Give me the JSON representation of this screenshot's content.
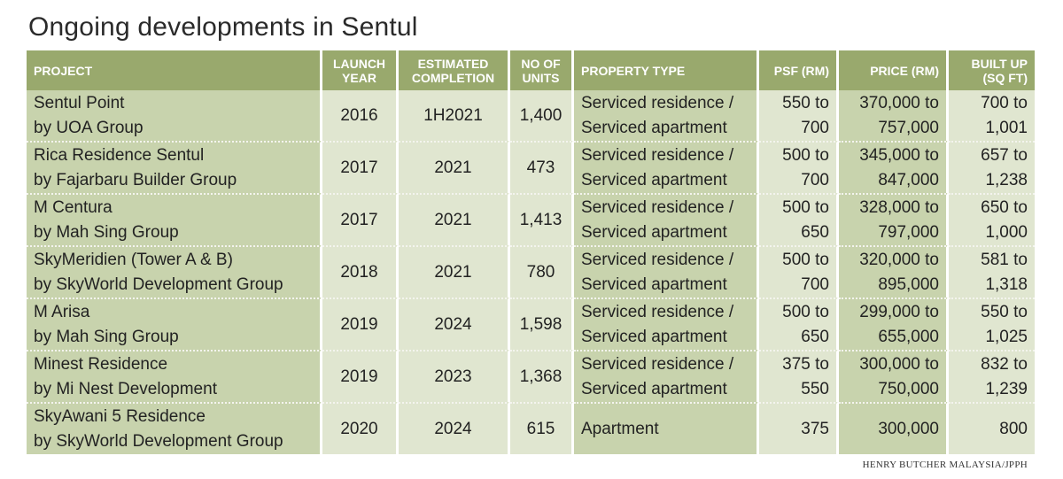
{
  "title": "Ongoing developments in Sentul",
  "headers": {
    "project": "PROJECT",
    "launch_year": [
      "LAUNCH",
      "YEAR"
    ],
    "completion": [
      "ESTIMATED",
      "COMPLETION"
    ],
    "units": [
      "NO OF",
      "UNITS"
    ],
    "property_type": "PROPERTY TYPE",
    "psf": "PSF (RM)",
    "price": "PRICE (RM)",
    "built_up": [
      "BUILT UP",
      "(SQ FT)"
    ]
  },
  "rows": [
    {
      "project": [
        "Sentul Point",
        "by UOA Group"
      ],
      "launch_year": "2016",
      "completion": "1H2021",
      "units": "1,400",
      "property_type": [
        "Serviced residence /",
        "Serviced apartment"
      ],
      "psf": [
        "550 to",
        "700"
      ],
      "price": [
        "370,000 to",
        "757,000"
      ],
      "built_up": [
        "700 to",
        "1,001"
      ]
    },
    {
      "project": [
        "Rica Residence Sentul",
        "by Fajarbaru Builder Group"
      ],
      "launch_year": "2017",
      "completion": "2021",
      "units": "473",
      "property_type": [
        "Serviced residence /",
        "Serviced apartment"
      ],
      "psf": [
        "500 to",
        "700"
      ],
      "price": [
        "345,000 to",
        "847,000"
      ],
      "built_up": [
        "657 to",
        "1,238"
      ]
    },
    {
      "project": [
        "M Centura",
        "by Mah Sing Group"
      ],
      "launch_year": "2017",
      "completion": "2021",
      "units": "1,413",
      "property_type": [
        "Serviced residence /",
        "Serviced apartment"
      ],
      "psf": [
        "500 to",
        "650"
      ],
      "price": [
        "328,000 to",
        "797,000"
      ],
      "built_up": [
        "650 to",
        "1,000"
      ]
    },
    {
      "project": [
        "SkyMeridien (Tower A & B)",
        "by SkyWorld Development Group"
      ],
      "launch_year": "2018",
      "completion": "2021",
      "units": "780",
      "property_type": [
        "Serviced residence /",
        "Serviced apartment"
      ],
      "psf": [
        "500 to",
        "700"
      ],
      "price": [
        "320,000 to",
        "895,000"
      ],
      "built_up": [
        "581 to",
        "1,318"
      ]
    },
    {
      "project": [
        "M Arisa",
        "by Mah Sing Group"
      ],
      "launch_year": "2019",
      "completion": "2024",
      "units": "1,598",
      "property_type": [
        "Serviced residence /",
        "Serviced apartment"
      ],
      "psf": [
        "500 to",
        "650"
      ],
      "price": [
        "299,000 to",
        "655,000"
      ],
      "built_up": [
        "550 to",
        "1,025"
      ]
    },
    {
      "project": [
        "Minest Residence",
        "by Mi Nest Development"
      ],
      "launch_year": "2019",
      "completion": "2023",
      "units": "1,368",
      "property_type": [
        "Serviced residence /",
        "Serviced apartment"
      ],
      "psf": [
        "375 to",
        "550"
      ],
      "price": [
        "300,000 to",
        "750,000"
      ],
      "built_up": [
        "832 to",
        "1,239"
      ]
    },
    {
      "project": [
        "SkyAwani 5 Residence",
        "by SkyWorld Development Group"
      ],
      "launch_year": "2020",
      "completion": "2024",
      "units": "615",
      "property_type": [
        "Apartment"
      ],
      "psf": [
        "375"
      ],
      "price": [
        "300,000"
      ],
      "built_up": [
        "800"
      ]
    }
  ],
  "source": "HENRY BUTCHER MALAYSIA/JPPH",
  "colors": {
    "header_bg": "#99a96d",
    "header_text": "#ffffff",
    "cell_dark": "#c8d3ad",
    "cell_light": "#e0e6d0"
  }
}
